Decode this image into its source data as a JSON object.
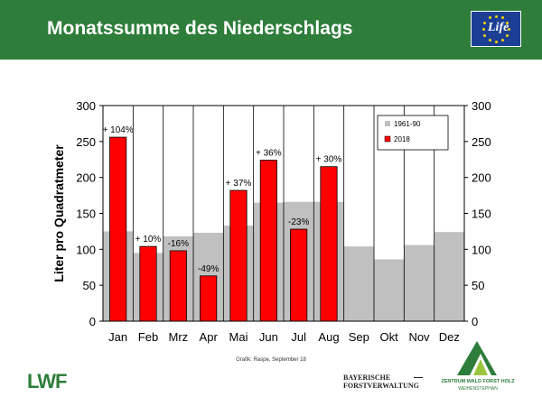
{
  "header": {
    "title": "Monatssumme des Niederschlags"
  },
  "logos": {
    "eu_life": "Life",
    "lwf": "LWF",
    "bayern_line1": "BAYERISCHE",
    "bayern_line2": "FORSTVERWALTUNG",
    "zentrum_line1": "ZENTRUM WALD FORST HOLZ",
    "zentrum_line2": "WEIHENSTEPHAN"
  },
  "credit": "Grafik: Raspe, September 18",
  "chart_data": {
    "type": "bar",
    "title": "",
    "ylabel": "Liter pro Quadratmeter",
    "ylim": [
      0,
      300
    ],
    "yticks": [
      0,
      50,
      100,
      150,
      200,
      250,
      300
    ],
    "categories": [
      "Jan",
      "Feb",
      "Mrz",
      "Apr",
      "Mai",
      "Jun",
      "Jul",
      "Aug",
      "Sep",
      "Okt",
      "Nov",
      "Dez"
    ],
    "series": [
      {
        "name": "1961-90",
        "color": "#c0c0c0",
        "values": [
          125,
          95,
          118,
          123,
          133,
          165,
          166,
          166,
          104,
          86,
          106,
          124
        ]
      },
      {
        "name": "2018",
        "color": "#ff0000",
        "values": [
          256,
          104,
          98,
          63,
          182,
          224,
          128,
          215,
          null,
          null,
          null,
          null
        ]
      }
    ],
    "annotations": [
      "+ 104%",
      "+ 10%",
      "-16%",
      "-49%",
      "+ 37%",
      "+ 36%",
      "-23%",
      "+ 30%",
      "",
      "",
      "",
      ""
    ],
    "legend_position": "top-right",
    "grid": "vertical"
  }
}
